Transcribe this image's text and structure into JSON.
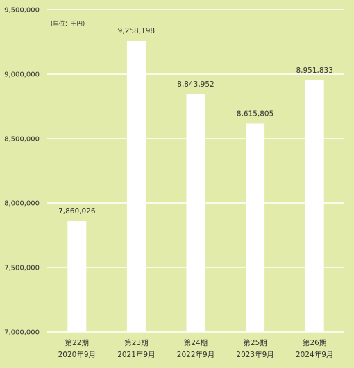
{
  "chart_data": {
    "type": "bar",
    "unit_note": "(単位：千円)",
    "categories": [
      {
        "period": "第22期",
        "date": "2020年9月"
      },
      {
        "period": "第23期",
        "date": "2021年9月"
      },
      {
        "period": "第24期",
        "date": "2022年9月"
      },
      {
        "period": "第25期",
        "date": "2023年9月"
      },
      {
        "period": "第26期",
        "date": "2024年9月"
      }
    ],
    "values": [
      7860026,
      9258198,
      8843952,
      8615805,
      8951833
    ],
    "value_labels": [
      "7,860,026",
      "9,258,198",
      "8,843,952",
      "8,615,805",
      "8,951,833"
    ],
    "ylim": [
      7000000,
      9500000
    ],
    "yticks": [
      7000000,
      7500000,
      8000000,
      8500000,
      9000000,
      9500000
    ],
    "ytick_labels": [
      "7,000,000",
      "7,500,000",
      "8,000,000",
      "8,500,000",
      "9,000,000",
      "9,500,000"
    ],
    "grid": true,
    "colors": {
      "background": "#e3ebab",
      "bar": "#ffffff",
      "grid": "#ffffff",
      "text": "#333333"
    }
  }
}
